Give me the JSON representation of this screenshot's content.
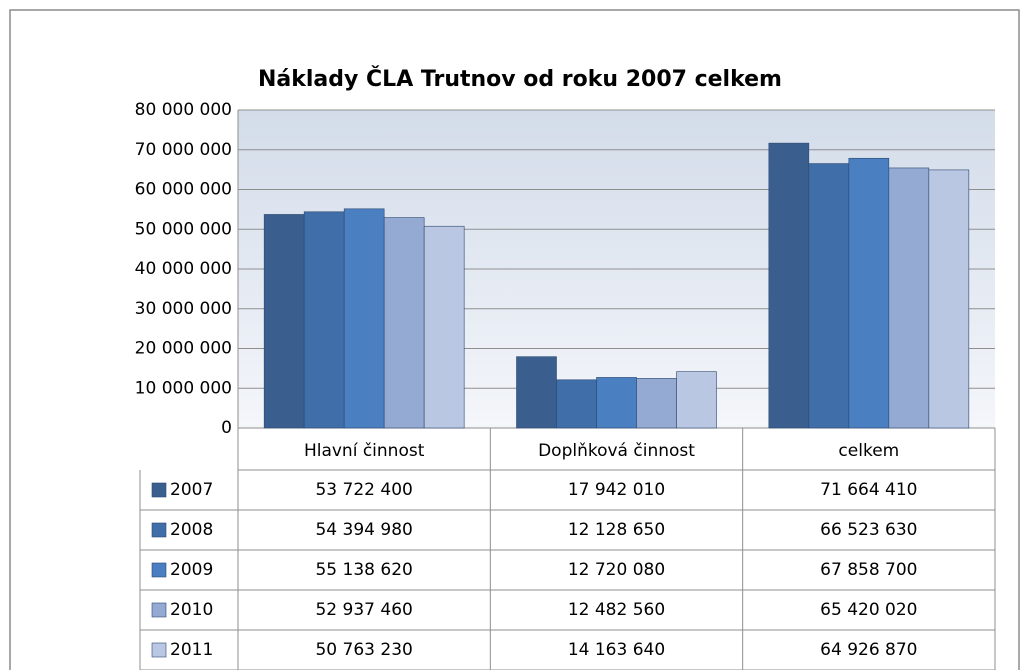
{
  "chart_data": {
    "type": "bar",
    "title": "Náklady ČLA Trutnov od roku 2007  celkem",
    "categories": [
      "Hlavní činnost",
      "Doplňková činnost",
      "celkem"
    ],
    "series": [
      {
        "name": "2007",
        "color": "#3a5f8f",
        "values": [
          53722400,
          17942010,
          71664410
        ],
        "value_labels": [
          "53 722 400",
          "17 942 010",
          "71 664 410"
        ]
      },
      {
        "name": "2008",
        "color": "#3f6ea8",
        "values": [
          54394980,
          12128650,
          66523630
        ],
        "value_labels": [
          "54 394 980",
          "12 128 650",
          "66 523 630"
        ]
      },
      {
        "name": "2009",
        "color": "#4a80c2",
        "values": [
          55138620,
          12720080,
          67858700
        ],
        "value_labels": [
          "55 138 620",
          "12 720 080",
          "67 858 700"
        ]
      },
      {
        "name": "2010",
        "color": "#95aad3",
        "values": [
          52937460,
          12482560,
          65420020
        ],
        "value_labels": [
          "52 937 460",
          "12 482 560",
          "65 420 020"
        ]
      },
      {
        "name": "2011",
        "color": "#bac7e2",
        "values": [
          50763230,
          14163640,
          64926870
        ],
        "value_labels": [
          "50 763 230",
          "14 163 640",
          "64 926 870"
        ]
      }
    ],
    "ylim": [
      0,
      80000000
    ],
    "yticks": [
      0,
      {
        "value": 10000000,
        "label": "10 000 000"
      },
      {
        "value": 20000000,
        "label": "20 000 000"
      },
      {
        "value": 30000000,
        "label": "30 000 000"
      },
      {
        "value": 40000000,
        "label": "40 000 000"
      },
      {
        "value": 50000000,
        "label": "50 000 000"
      },
      {
        "value": 60000000,
        "label": "60 000 000"
      },
      {
        "value": 70000000,
        "label": "70 000 000"
      },
      {
        "value": 80000000,
        "label": "80 000 000"
      }
    ],
    "grid": true
  }
}
